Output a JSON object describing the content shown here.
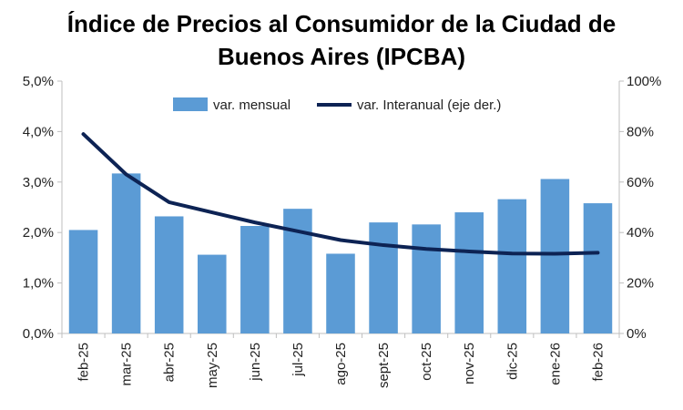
{
  "chart_data": {
    "type": "bar",
    "title_line1": "Índice de Precios al Consumidor de la Ciudad de",
    "title_line2": "Buenos Aires (IPCBA)",
    "categories": [
      "feb-25",
      "mar-25",
      "abr-25",
      "may-25",
      "jun-25",
      "jul-25",
      "ago-25",
      "sept-25",
      "oct-25",
      "nov-25",
      "dic-25",
      "ene-26",
      "feb-26"
    ],
    "series": [
      {
        "name": "var. mensual",
        "type": "bar",
        "axis": "left",
        "color": "#5b9bd5",
        "values": [
          2.05,
          3.17,
          2.32,
          1.56,
          2.13,
          2.47,
          1.58,
          2.2,
          2.16,
          2.4,
          2.66,
          3.06,
          2.58
        ]
      },
      {
        "name": "var. Interanual (eje der.)",
        "type": "line",
        "axis": "right",
        "color": "#0d2354",
        "values": [
          79,
          63,
          52,
          48,
          44,
          40.5,
          37,
          35,
          33.5,
          32.5,
          31.7,
          31.6,
          32
        ]
      }
    ],
    "y_left": {
      "ylim": [
        0,
        5
      ],
      "ticks": [
        "0,0%",
        "1,0%",
        "2,0%",
        "3,0%",
        "4,0%",
        "5,0%"
      ]
    },
    "y_right": {
      "ylim": [
        0,
        100
      ],
      "ticks": [
        "0%",
        "20%",
        "40%",
        "60%",
        "80%",
        "100%"
      ]
    },
    "legend": "top-center",
    "grid": false
  }
}
